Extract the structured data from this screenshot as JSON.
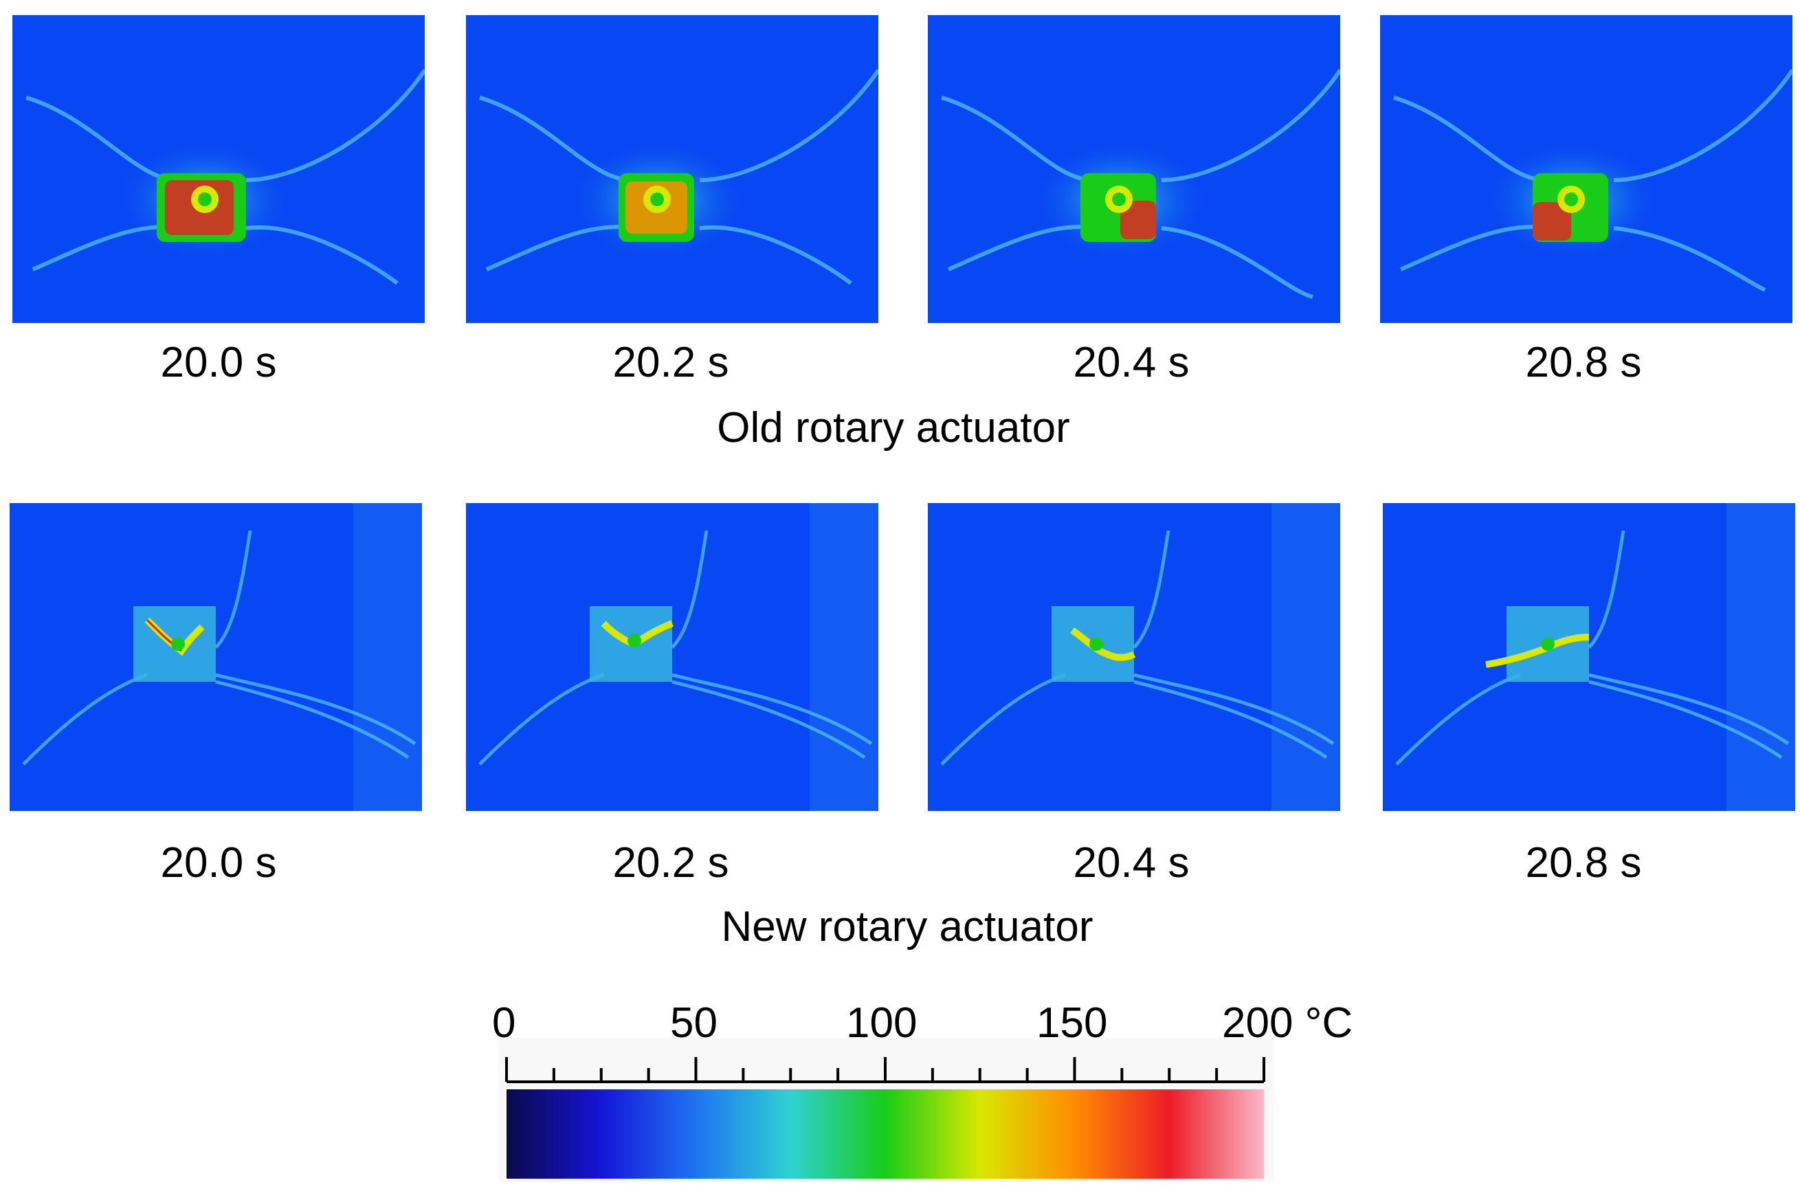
{
  "rows": [
    {
      "title": "Old rotary actuator",
      "frames": [
        {
          "time": "20.0 s"
        },
        {
          "time": "20.2 s"
        },
        {
          "time": "20.4 s"
        },
        {
          "time": "20.8 s"
        }
      ]
    },
    {
      "title": "New rotary actuator",
      "frames": [
        {
          "time": "20.0 s"
        },
        {
          "time": "20.2 s"
        },
        {
          "time": "20.4 s"
        },
        {
          "time": "20.8 s"
        }
      ]
    }
  ],
  "colorbar": {
    "min": 0,
    "max": 200,
    "tick_labels": [
      "0",
      "50",
      "100",
      "150",
      "200 °C"
    ],
    "major_step": 50,
    "minor_step": 12.5,
    "colors": [
      "#0a0a4a",
      "#1515d8",
      "#1f73f2",
      "#2fd2d2",
      "#18cc18",
      "#d8e800",
      "#ff8c00",
      "#ee1c28",
      "#f8b8c8"
    ],
    "background_color": "#0847f4"
  }
}
